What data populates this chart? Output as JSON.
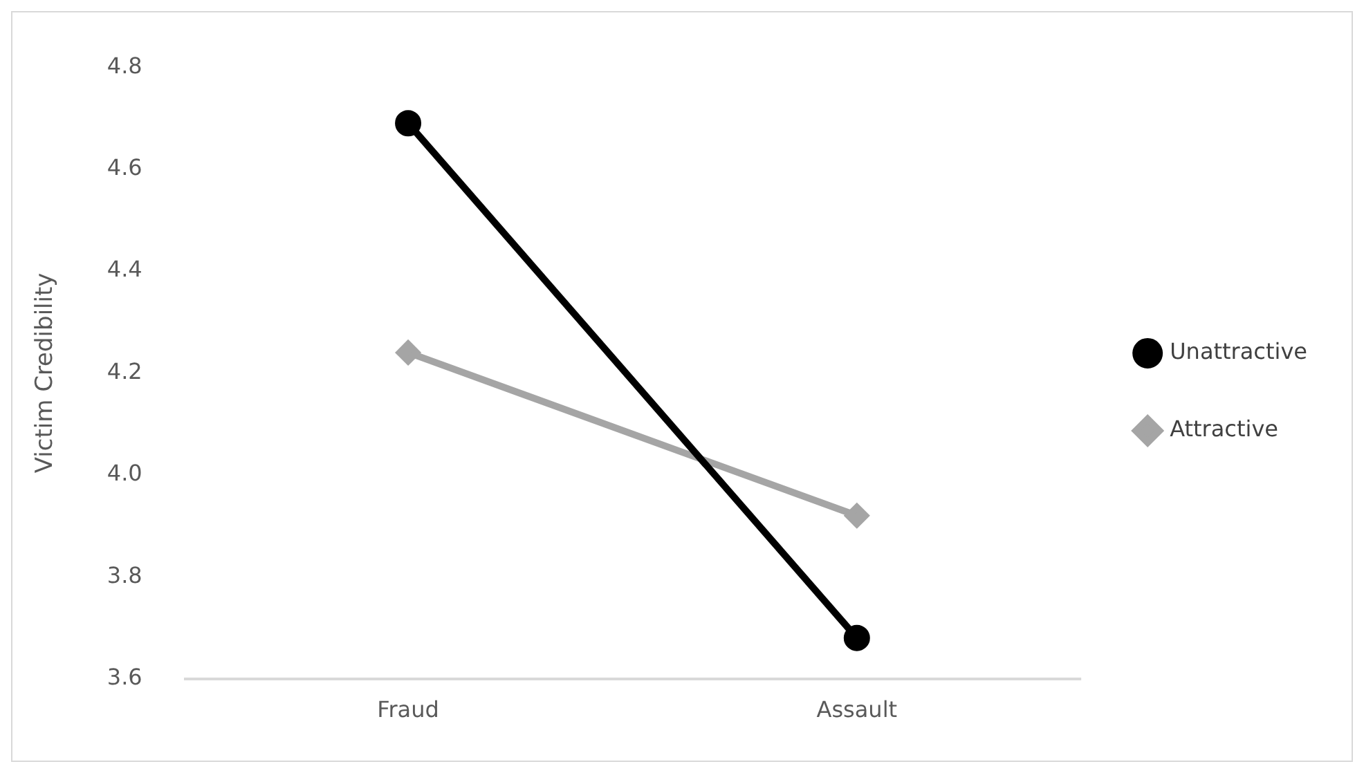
{
  "chart_data": {
    "type": "line",
    "ylabel": "Victim Credibility",
    "categories": [
      "Fraud",
      "Assault"
    ],
    "series": [
      {
        "name": "Unattractive",
        "color": "#000000",
        "marker": "circle",
        "values": [
          4.69,
          3.68
        ]
      },
      {
        "name": "Attractive",
        "color": "#a5a5a5",
        "marker": "diamond",
        "values": [
          4.24,
          3.92
        ]
      }
    ],
    "ylim": [
      3.6,
      4.8
    ],
    "yticks": [
      3.6,
      3.8,
      {
        "value": 4,
        "label": "4.0"
      },
      4.2,
      4.4,
      4.6,
      4.8
    ],
    "legend": "right",
    "grid": false
  }
}
